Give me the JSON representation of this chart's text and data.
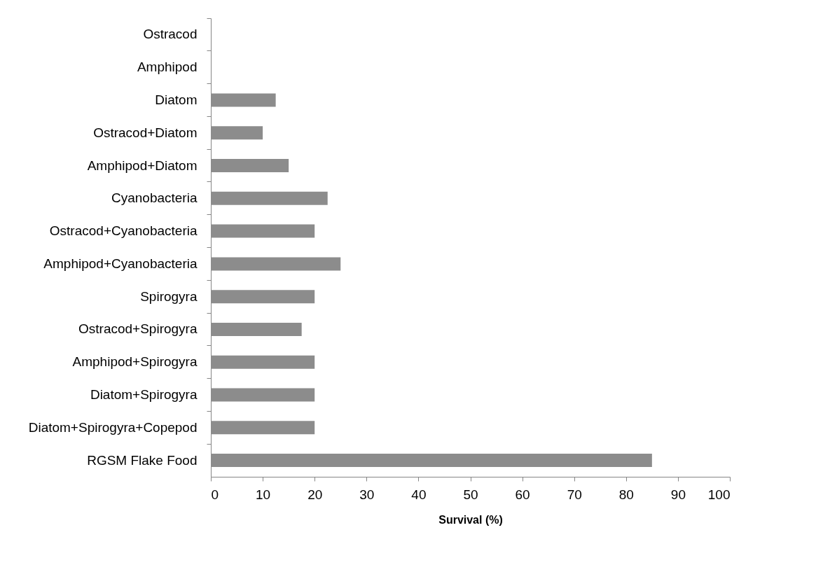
{
  "chart_data": {
    "type": "bar",
    "orientation": "horizontal",
    "xlabel": "Survival (%)",
    "categories": [
      "Ostracod",
      "Amphipod",
      "Diatom",
      "Ostracod+Diatom",
      "Amphipod+Diatom",
      "Cyanobacteria",
      "Ostracod+Cyanobacteria",
      "Amphipod+Cyanobacteria",
      "Spirogyra",
      "Ostracod+Spirogyra",
      "Amphipod+Spirogyra",
      "Diatom+Spirogyra",
      "Diatom+Spirogyra+Copepod",
      "RGSM Flake Food"
    ],
    "values": [
      0,
      0,
      12.5,
      10,
      15,
      22.5,
      20,
      25,
      20,
      17.5,
      20,
      20,
      20,
      85
    ],
    "color": "#8c8c8c",
    "xlim": [
      0,
      100
    ],
    "xticks": [
      0,
      10,
      20,
      30,
      40,
      50,
      60,
      70,
      80,
      90,
      100
    ],
    "grid": false
  }
}
